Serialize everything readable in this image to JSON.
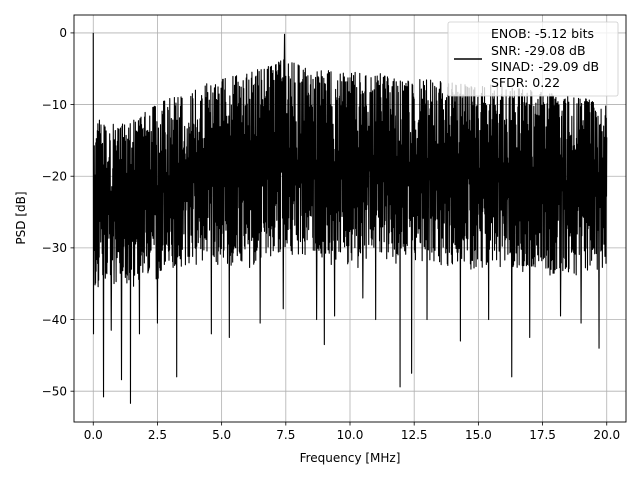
{
  "chart_data": {
    "type": "line",
    "xlabel": "Frequency [MHz]",
    "ylabel": "PSD [dB]",
    "xlim": [
      -0.75,
      20.75
    ],
    "ylim": [
      -54.3,
      2.5
    ],
    "xticks": [
      0.0,
      2.5,
      5.0,
      7.5,
      10.0,
      12.5,
      15.0,
      17.5,
      20.0
    ],
    "xtick_labels": [
      "0.0",
      "2.5",
      "5.0",
      "7.5",
      "10.0",
      "12.5",
      "15.0",
      "17.5",
      "20.0"
    ],
    "yticks": [
      0,
      -10,
      -20,
      -30,
      -40,
      -50
    ],
    "ytick_labels": [
      "0",
      "−10",
      "−20",
      "−30",
      "−40",
      "−50"
    ],
    "grid": true,
    "legend_position": "top-right",
    "line_color": "#000000",
    "x_range": [
      0,
      20
    ],
    "legend": {
      "lines": [
        "ENOB: -5.12 bits",
        "SNR: -29.08 dB",
        "SINAD: -29.09 dB",
        "SFDR: 0.22"
      ]
    },
    "envelope": {
      "x": [
        0.1,
        1,
        2,
        3,
        4,
        5,
        6,
        7,
        7.5,
        8,
        9,
        10,
        11,
        12,
        13,
        14,
        15,
        16,
        17,
        18,
        19,
        20
      ],
      "upper": [
        -12,
        -13,
        -11,
        -9,
        -7.5,
        -6.5,
        -5.5,
        -4.5,
        -3.5,
        -4.5,
        -5,
        -5.5,
        -5.5,
        -6.5,
        -6.5,
        -7,
        -7.5,
        -7,
        -8,
        -8.5,
        -9,
        -10
      ],
      "lower": [
        -33,
        -34,
        -32,
        -31,
        -30,
        -30.5,
        -30,
        -29,
        -29,
        -29,
        -30,
        -30,
        -29.5,
        -29.5,
        -30,
        -30,
        -30.5,
        -30,
        -31,
        -31,
        -31.5,
        -31
      ]
    },
    "peaks": [
      {
        "x": 0.02,
        "y": 0
      },
      {
        "x": 7.45,
        "y": -0.2
      }
    ],
    "dips": [
      {
        "x": 0.02,
        "y": -42
      },
      {
        "x": 0.4,
        "y": -50.8
      },
      {
        "x": 0.7,
        "y": -41.5
      },
      {
        "x": 1.1,
        "y": -48.4
      },
      {
        "x": 1.45,
        "y": -51.7
      },
      {
        "x": 1.8,
        "y": -42
      },
      {
        "x": 2.5,
        "y": -40.5
      },
      {
        "x": 3.25,
        "y": -48
      },
      {
        "x": 4.6,
        "y": -42
      },
      {
        "x": 5.3,
        "y": -42.5
      },
      {
        "x": 6.5,
        "y": -40.5
      },
      {
        "x": 7.4,
        "y": -38.5
      },
      {
        "x": 8.7,
        "y": -40
      },
      {
        "x": 9.0,
        "y": -43.5
      },
      {
        "x": 9.4,
        "y": -39.5
      },
      {
        "x": 10.5,
        "y": -37
      },
      {
        "x": 11.0,
        "y": -40
      },
      {
        "x": 11.95,
        "y": -49.4
      },
      {
        "x": 12.4,
        "y": -47.5
      },
      {
        "x": 13.0,
        "y": -40
      },
      {
        "x": 14.3,
        "y": -43
      },
      {
        "x": 15.4,
        "y": -40
      },
      {
        "x": 16.3,
        "y": -48
      },
      {
        "x": 17.0,
        "y": -42.5
      },
      {
        "x": 18.2,
        "y": -39.5
      },
      {
        "x": 19.0,
        "y": -40.5
      },
      {
        "x": 19.7,
        "y": -44
      }
    ]
  }
}
